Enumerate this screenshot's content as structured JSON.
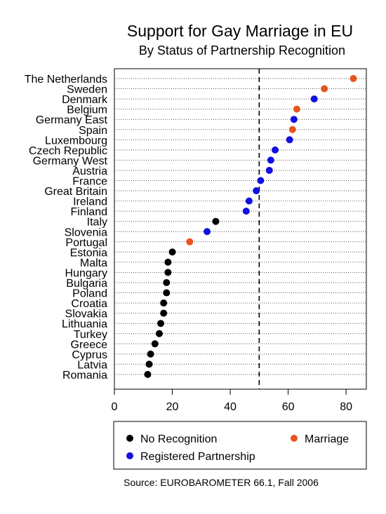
{
  "chart_data": {
    "type": "scatter",
    "title": "Support for Gay Marriage in EU",
    "subtitle": "By Status of Partnership Recognition",
    "source": "Source: EUROBAROMETER 66.1, Fall 2006",
    "xlim": [
      0,
      87
    ],
    "xticks": [
      0,
      20,
      40,
      60,
      80
    ],
    "reference_line": 50,
    "grid": "dotted horizontal",
    "legend_placement": "bottom",
    "categories": [
      "No Recognition",
      "Marriage",
      "Registered Partnership"
    ],
    "colors": {
      "No Recognition": "#000000",
      "Marriage": "#e8541c",
      "Registered Partnership": "#1010e0"
    },
    "legend": [
      {
        "label": "No Recognition",
        "category": "No Recognition"
      },
      {
        "label": "Marriage",
        "category": "Marriage"
      },
      {
        "label": "Registered Partnership",
        "category": "Registered Partnership"
      }
    ],
    "points": [
      {
        "country": "The Netherlands",
        "value": 82.5,
        "category": "Marriage"
      },
      {
        "country": "Sweden",
        "value": 72.5,
        "category": "Marriage"
      },
      {
        "country": "Denmark",
        "value": 69,
        "category": "Registered Partnership"
      },
      {
        "country": "Belgium",
        "value": 63,
        "category": "Marriage"
      },
      {
        "country": "Germany East",
        "value": 62,
        "category": "Registered Partnership"
      },
      {
        "country": "Spain",
        "value": 61.5,
        "category": "Marriage"
      },
      {
        "country": "Luxembourg",
        "value": 60.5,
        "category": "Registered Partnership"
      },
      {
        "country": "Czech Republic",
        "value": 55.5,
        "category": "Registered Partnership"
      },
      {
        "country": "Germany West",
        "value": 54,
        "category": "Registered Partnership"
      },
      {
        "country": "Austria",
        "value": 53.5,
        "category": "Registered Partnership"
      },
      {
        "country": "France",
        "value": 50.5,
        "category": "Registered Partnership"
      },
      {
        "country": "Great Britain",
        "value": 49,
        "category": "Registered Partnership"
      },
      {
        "country": "Ireland",
        "value": 46.5,
        "category": "Registered Partnership"
      },
      {
        "country": "Finland",
        "value": 45.5,
        "category": "Registered Partnership"
      },
      {
        "country": "Italy",
        "value": 35,
        "category": "No Recognition"
      },
      {
        "country": "Slovenia",
        "value": 32,
        "category": "Registered Partnership"
      },
      {
        "country": "Portugal",
        "value": 26,
        "category": "Marriage"
      },
      {
        "country": "Estonia",
        "value": 20,
        "category": "No Recognition"
      },
      {
        "country": "Malta",
        "value": 18.5,
        "category": "No Recognition"
      },
      {
        "country": "Hungary",
        "value": 18.5,
        "category": "No Recognition"
      },
      {
        "country": "Bulgaria",
        "value": 18,
        "category": "No Recognition"
      },
      {
        "country": "Poland",
        "value": 18,
        "category": "No Recognition"
      },
      {
        "country": "Croatia",
        "value": 17,
        "category": "No Recognition"
      },
      {
        "country": "Slovakia",
        "value": 17,
        "category": "No Recognition"
      },
      {
        "country": "Lithuania",
        "value": 16,
        "category": "No Recognition"
      },
      {
        "country": "Turkey",
        "value": 15.5,
        "category": "No Recognition"
      },
      {
        "country": "Greece",
        "value": 14,
        "category": "No Recognition"
      },
      {
        "country": "Cyprus",
        "value": 12.5,
        "category": "No Recognition"
      },
      {
        "country": "Latvia",
        "value": 12,
        "category": "No Recognition"
      },
      {
        "country": "Romania",
        "value": 11.5,
        "category": "No Recognition"
      }
    ]
  }
}
